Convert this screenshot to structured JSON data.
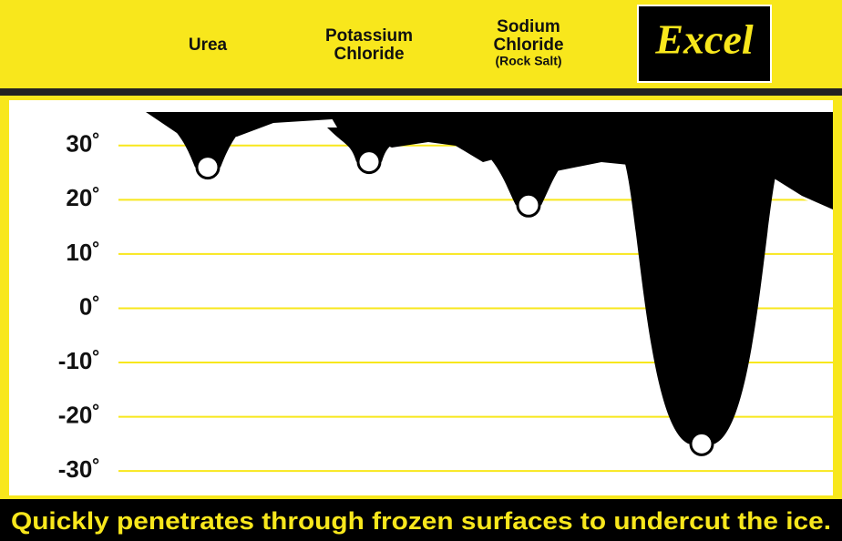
{
  "chart_data": {
    "type": "drip",
    "categories": [
      "Urea",
      "Potassium Chloride",
      "Sodium Chloride",
      "Excel"
    ],
    "category_notes": [
      null,
      null,
      "(Rock Salt)",
      null
    ],
    "values": [
      26,
      27,
      19,
      -25
    ],
    "ylim": [
      -34,
      36
    ],
    "yticks": [
      {
        "value": 30,
        "label": "30˚"
      },
      {
        "value": 20,
        "label": "20˚"
      },
      {
        "value": 10,
        "label": "10˚"
      },
      {
        "value": 0,
        "label": "0˚"
      },
      {
        "value": -10,
        "label": "-10˚"
      },
      {
        "value": -20,
        "label": "-20˚"
      },
      {
        "value": -30,
        "label": "-30˚"
      }
    ],
    "grid": true,
    "footer": "Quickly penetrates through frozen surfaces to undercut the ice."
  }
}
